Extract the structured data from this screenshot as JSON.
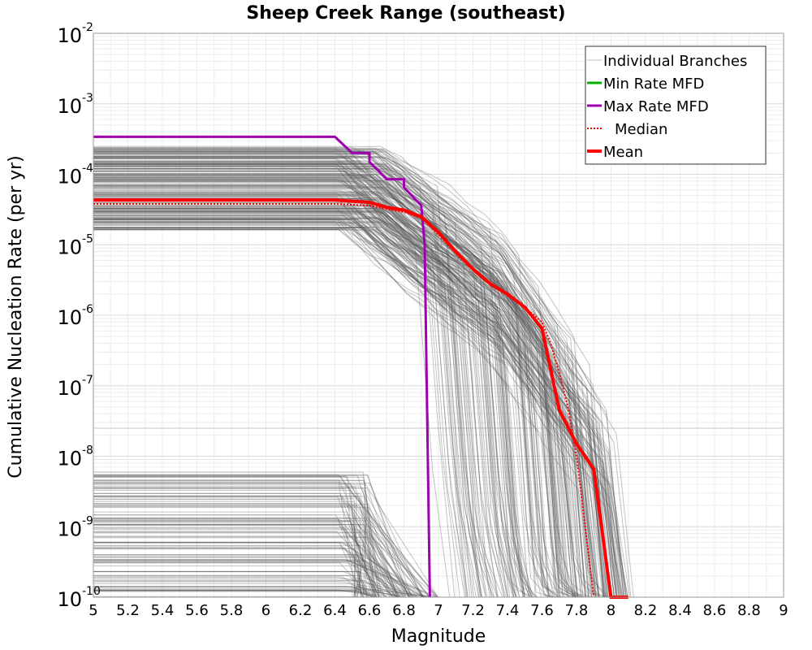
{
  "chart_data": {
    "type": "line",
    "title": "Sheep Creek Range (southeast)",
    "xlabel": "Magnitude",
    "ylabel": "Cumulative Nucleation Rate (per yr)",
    "xlim": [
      5,
      9
    ],
    "ylim": [
      1e-10,
      0.01
    ],
    "yscale": "log",
    "grid": true,
    "legend_position": "top-right",
    "x_ticks": [
      "5",
      "5.2",
      "5.4",
      "5.6",
      "5.8",
      "6",
      "6.2",
      "6.4",
      "6.6",
      "6.8",
      "7",
      "7.2",
      "7.4",
      "7.6",
      "7.8",
      "8",
      "8.2",
      "8.4",
      "8.6",
      "8.8",
      "9"
    ],
    "y_ticks": [
      {
        "base": "10",
        "exp": "-2",
        "value": 0.01
      },
      {
        "base": "10",
        "exp": "-3",
        "value": 0.001
      },
      {
        "base": "10",
        "exp": "-4",
        "value": 0.0001
      },
      {
        "base": "10",
        "exp": "-5",
        "value": 1e-05
      },
      {
        "base": "10",
        "exp": "-6",
        "value": 1e-06
      },
      {
        "base": "10",
        "exp": "-7",
        "value": 1e-07
      },
      {
        "base": "10",
        "exp": "-8",
        "value": 1e-08
      },
      {
        "base": "10",
        "exp": "-9",
        "value": 1e-09
      },
      {
        "base": "10",
        "exp": "-10",
        "value": 1e-10
      }
    ],
    "legend": [
      {
        "label": "Individual Branches",
        "color": "#bfbfbf",
        "style": "thin"
      },
      {
        "label": "Min Rate MFD",
        "color": "#00b000",
        "style": "solid"
      },
      {
        "label": "Max Rate MFD",
        "color": "#a000b0",
        "style": "solid"
      },
      {
        "label": "Median",
        "color": "#ff0000",
        "style": "dotted"
      },
      {
        "label": "Mean",
        "color": "#ff0000",
        "style": "thick"
      }
    ],
    "series": [
      {
        "name": "Max Rate MFD",
        "color": "#a000b0",
        "x": [
          5,
          6.4,
          6.5,
          6.5,
          6.6,
          6.6,
          6.7,
          6.7,
          6.8,
          6.8,
          6.9,
          6.92,
          6.95
        ],
        "y": [
          0.00034,
          0.00034,
          0.0002,
          0.0002,
          0.0002,
          0.00015,
          8.5e-05,
          8.5e-05,
          8.5e-05,
          6.5e-05,
          3.6e-05,
          1e-05,
          1e-10
        ]
      },
      {
        "name": "Mean",
        "color": "#ff0000",
        "x": [
          5,
          6.4,
          6.6,
          6.7,
          6.8,
          6.9,
          7.0,
          7.1,
          7.2,
          7.3,
          7.4,
          7.5,
          7.6,
          7.7,
          7.8,
          7.9,
          8.0,
          8.1
        ],
        "y": [
          4.3e-05,
          4.3e-05,
          4e-05,
          3.4e-05,
          3.1e-05,
          2.5e-05,
          1.5e-05,
          8e-06,
          4.5e-06,
          2.8e-06,
          2e-06,
          1.3e-06,
          6.5e-07,
          4.5e-08,
          1.5e-08,
          6.5e-09,
          1e-10,
          1e-10
        ]
      },
      {
        "name": "Median",
        "color": "#ff0000",
        "x": [
          5,
          6.4,
          6.6,
          6.7,
          6.8,
          6.9,
          7.0,
          7.1,
          7.2,
          7.3,
          7.4,
          7.5,
          7.6,
          7.65,
          7.7,
          7.75,
          7.8,
          7.9
        ],
        "y": [
          3.8e-05,
          3.8e-05,
          3.6e-05,
          3.2e-05,
          2.9e-05,
          2.4e-05,
          1.4e-05,
          7.5e-06,
          4.3e-06,
          2.7e-06,
          1.9e-06,
          1.3e-06,
          8e-07,
          4e-07,
          1.5e-07,
          5e-08,
          1e-08,
          1e-10
        ]
      }
    ]
  }
}
